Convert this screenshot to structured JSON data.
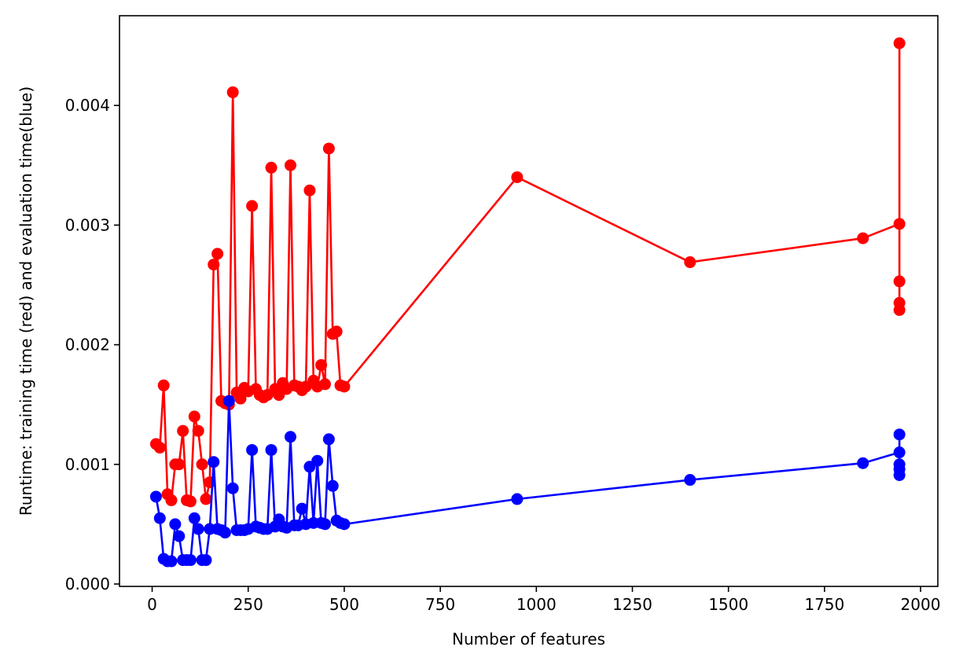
{
  "chart_data": {
    "type": "line",
    "title": "",
    "xlabel": "Number of features",
    "ylabel": "Runtime: training time (red) and evaluation time(blue)",
    "xlim": [
      -85,
      2045
    ],
    "ylim": [
      -2e-05,
      0.00475
    ],
    "xticks": [
      0,
      250,
      500,
      750,
      1000,
      1250,
      1500,
      1750,
      2000
    ],
    "xtick_labels": [
      "0",
      "250",
      "500",
      "750",
      "1000",
      "1250",
      "1500",
      "1750",
      "2000"
    ],
    "yticks": [
      0.0,
      0.001,
      0.002,
      0.003,
      0.004
    ],
    "ytick_labels": [
      "0.000",
      "0.001",
      "0.002",
      "0.003",
      "0.004"
    ],
    "grid": false,
    "legend": false,
    "series": [
      {
        "color": "#ff0000",
        "marker": "circle",
        "x": [
          10,
          20,
          30,
          40,
          50,
          60,
          70,
          80,
          90,
          100,
          110,
          120,
          130,
          140,
          150,
          160,
          170,
          180,
          190,
          200,
          210,
          220,
          230,
          240,
          250,
          260,
          270,
          280,
          290,
          300,
          310,
          320,
          330,
          340,
          350,
          360,
          370,
          380,
          390,
          400,
          410,
          420,
          430,
          440,
          450,
          460,
          470,
          480,
          490,
          500,
          950,
          1400,
          1850,
          1945,
          1945,
          1945,
          1945,
          1945
        ],
        "values": [
          0.00117,
          0.00114,
          0.00166,
          0.00075,
          0.0007,
          0.001,
          0.001,
          0.00128,
          0.0007,
          0.00069,
          0.0014,
          0.00128,
          0.001,
          0.00071,
          0.00085,
          0.00267,
          0.00276,
          0.00153,
          0.00151,
          0.0015,
          0.00411,
          0.0016,
          0.00155,
          0.00164,
          0.00161,
          0.00316,
          0.00163,
          0.00158,
          0.00156,
          0.00158,
          0.00348,
          0.00163,
          0.00158,
          0.00168,
          0.00163,
          0.0035,
          0.00166,
          0.00165,
          0.00162,
          0.00165,
          0.00329,
          0.0017,
          0.00165,
          0.00183,
          0.00167,
          0.00364,
          0.00209,
          0.00211,
          0.00166,
          0.00165,
          0.0034,
          0.00269,
          0.00289,
          0.00301,
          0.00253,
          0.00235,
          0.00229,
          0.00452
        ]
      },
      {
        "color": "#0000ff",
        "marker": "circle",
        "x": [
          10,
          20,
          30,
          40,
          50,
          60,
          70,
          80,
          90,
          100,
          110,
          120,
          130,
          140,
          150,
          160,
          170,
          180,
          190,
          200,
          210,
          220,
          230,
          240,
          250,
          260,
          270,
          280,
          290,
          300,
          310,
          320,
          330,
          340,
          350,
          360,
          370,
          380,
          390,
          400,
          410,
          420,
          430,
          440,
          450,
          460,
          470,
          480,
          490,
          500,
          950,
          1400,
          1850,
          1945,
          1945,
          1945,
          1945,
          1945
        ],
        "values": [
          0.00073,
          0.00055,
          0.00021,
          0.00019,
          0.00019,
          0.0005,
          0.0004,
          0.0002,
          0.0002,
          0.0002,
          0.00055,
          0.00046,
          0.0002,
          0.0002,
          0.00046,
          0.00102,
          0.00046,
          0.00045,
          0.00043,
          0.00153,
          0.0008,
          0.00045,
          0.00045,
          0.00045,
          0.00046,
          0.00112,
          0.00048,
          0.00047,
          0.00046,
          0.00046,
          0.00112,
          0.00048,
          0.00054,
          0.00048,
          0.00047,
          0.00123,
          0.00049,
          0.00049,
          0.00063,
          0.0005,
          0.00098,
          0.00051,
          0.00103,
          0.00051,
          0.0005,
          0.00121,
          0.00082,
          0.00053,
          0.00051,
          0.0005,
          0.00071,
          0.00087,
          0.00101,
          0.0011,
          0.00091,
          0.00096,
          0.001,
          0.00125
        ]
      }
    ]
  }
}
